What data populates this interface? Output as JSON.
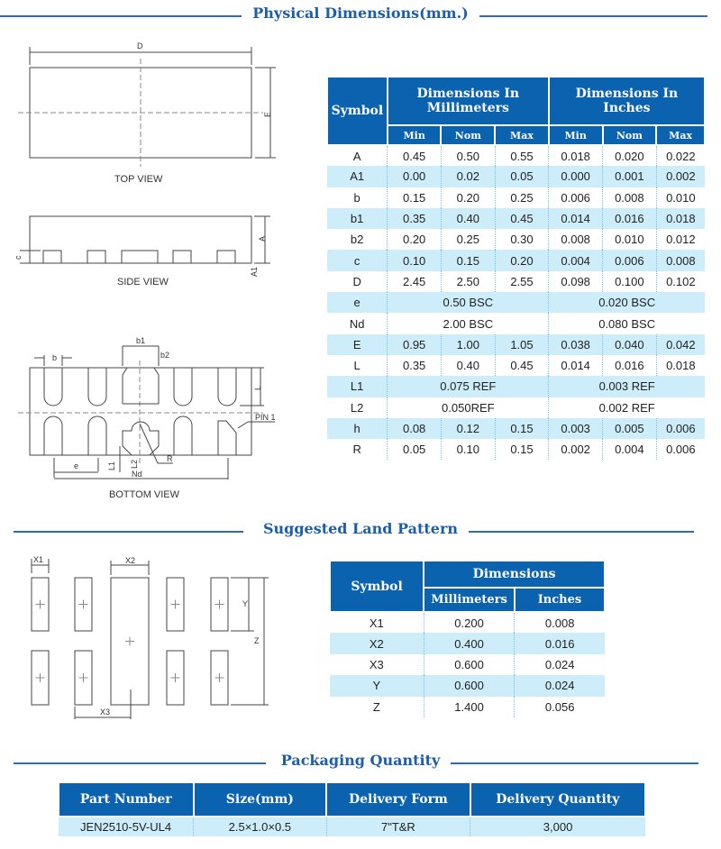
{
  "sections": {
    "physical": "Physical Dimensions(mm.)",
    "land": "Suggested Land Pattern",
    "packaging": "Packaging Quantity"
  },
  "drawing": {
    "top_view": "TOP VIEW",
    "side_view": "SIDE VIEW",
    "bottom_view": "BOTTOM VIEW",
    "labels": {
      "D": "D",
      "E": "E",
      "A": "A",
      "A1": "A1",
      "c": "c",
      "b": "b",
      "b1": "b1",
      "b2": "b2",
      "L": "L",
      "pin1": "PIN 1",
      "e": "e",
      "L1": "L1",
      "L2": "L2",
      "R": "R",
      "Nd": "Nd"
    }
  },
  "land_drawing": {
    "X1": "X1",
    "X2": "X2",
    "X3": "X3",
    "Y": "Y",
    "Z": "Z"
  },
  "dimensions_table": {
    "symbol_header": "Symbol",
    "mm_header": "Dimensions In Millimeters",
    "in_header": "Dimensions In Inches",
    "sub_headers": [
      "Min",
      "Nom",
      "Max",
      "Min",
      "Nom",
      "Max"
    ],
    "rows": [
      {
        "symbol": "A",
        "values": [
          "0.45",
          "0.50",
          "0.55",
          "0.018",
          "0.020",
          "0.022"
        ]
      },
      {
        "symbol": "A1",
        "values": [
          "0.00",
          "0.02",
          "0.05",
          "0.000",
          "0.001",
          "0.002"
        ]
      },
      {
        "symbol": "b",
        "values": [
          "0.15",
          "0.20",
          "0.25",
          "0.006",
          "0.008",
          "0.010"
        ]
      },
      {
        "symbol": "b1",
        "values": [
          "0.35",
          "0.40",
          "0.45",
          "0.014",
          "0.016",
          "0.018"
        ]
      },
      {
        "symbol": "b2",
        "values": [
          "0.20",
          "0.25",
          "0.30",
          "0.008",
          "0.010",
          "0.012"
        ]
      },
      {
        "symbol": "c",
        "values": [
          "0.10",
          "0.15",
          "0.20",
          "0.004",
          "0.006",
          "0.008"
        ]
      },
      {
        "symbol": "D",
        "values": [
          "2.45",
          "2.50",
          "2.55",
          "0.098",
          "0.100",
          "0.102"
        ]
      },
      {
        "symbol": "e",
        "mm": "0.50 BSC",
        "in": "0.020 BSC"
      },
      {
        "symbol": "Nd",
        "mm": "2.00 BSC",
        "in": "0.080 BSC"
      },
      {
        "symbol": "E",
        "values": [
          "0.95",
          "1.00",
          "1.05",
          "0.038",
          "0.040",
          "0.042"
        ]
      },
      {
        "symbol": "L",
        "values": [
          "0.35",
          "0.40",
          "0.45",
          "0.014",
          "0.016",
          "0.018"
        ]
      },
      {
        "symbol": "L1",
        "mm": "0.075 REF",
        "in": "0.003 REF"
      },
      {
        "symbol": "L2",
        "mm": "0.050REF",
        "in": "0.002 REF"
      },
      {
        "symbol": "h",
        "values": [
          "0.08",
          "0.12",
          "0.15",
          "0.003",
          "0.005",
          "0.006"
        ]
      },
      {
        "symbol": "R",
        "values": [
          "0.05",
          "0.10",
          "0.15",
          "0.002",
          "0.004",
          "0.006"
        ]
      }
    ]
  },
  "land_table": {
    "symbol_header": "Symbol",
    "dim_header": "Dimensions",
    "mm_header": "Millimeters",
    "in_header": "Inches",
    "rows": [
      [
        "X1",
        "0.200",
        "0.008"
      ],
      [
        "X2",
        "0.400",
        "0.016"
      ],
      [
        "X3",
        "0.600",
        "0.024"
      ],
      [
        "Y",
        "0.600",
        "0.024"
      ],
      [
        "Z",
        "1.400",
        "0.056"
      ]
    ]
  },
  "packaging_table": {
    "headers": [
      "Part Number",
      "Size(mm)",
      "Delivery Form",
      "Delivery Quantity"
    ],
    "row": [
      "JEN2510-5V-UL4",
      "2.5×1.0×0.5",
      "7\"T&R",
      "3,000"
    ]
  },
  "colors": {
    "header_blue": "#0b63b0",
    "row_alt": "#cdedfa",
    "title": "#1d5ea8"
  }
}
